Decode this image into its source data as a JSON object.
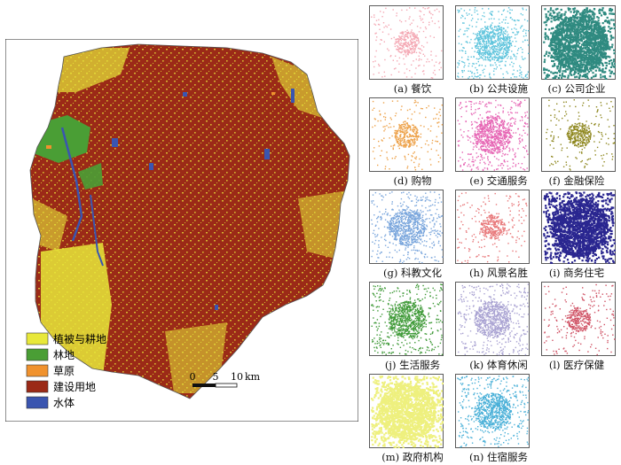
{
  "main_map": {
    "legend": [
      {
        "label": "植被与耕地",
        "color": "#e8e83a"
      },
      {
        "label": "林地",
        "color": "#4a9e35"
      },
      {
        "label": "草原",
        "color": "#f0922e"
      },
      {
        "label": "建设用地",
        "color": "#9b2a17"
      },
      {
        "label": "水体",
        "color": "#3a55b0"
      }
    ],
    "scale_bar": {
      "ticks": [
        "0",
        "5",
        "10"
      ],
      "unit": "km"
    }
  },
  "panels": [
    {
      "caption": "(a) 餐饮",
      "color": "#f4a8b4",
      "density": "low"
    },
    {
      "caption": "(b) 公共设施",
      "color": "#5ec4dc",
      "density": "mid"
    },
    {
      "caption": "(c) 公司企业",
      "color": "#2f8a80",
      "density": "high"
    },
    {
      "caption": "(d) 购物",
      "color": "#eda24a",
      "density": "low"
    },
    {
      "caption": "(e) 交通服务",
      "color": "#e665b4",
      "density": "mid"
    },
    {
      "caption": "(f) 金融保险",
      "color": "#8f8820",
      "density": "low"
    },
    {
      "caption": "(g) 科教文化",
      "color": "#7aa6dc",
      "density": "mid"
    },
    {
      "caption": "(h) 风景名胜",
      "color": "#e8787a",
      "density": "low"
    },
    {
      "caption": "(i) 商务住宅",
      "color": "#2a2690",
      "density": "high"
    },
    {
      "caption": "(j) 生活服务",
      "color": "#3f9a38",
      "density": "mid"
    },
    {
      "caption": "(k) 体育休闲",
      "color": "#a9a2d2",
      "density": "mid"
    },
    {
      "caption": "(l) 医疗保健",
      "color": "#d05466",
      "density": "low"
    },
    {
      "caption": "(m) 政府机构",
      "color": "#eef07e",
      "density": "high"
    },
    {
      "caption": "(n) 住宿服务",
      "color": "#4ab0d8",
      "density": "mid"
    }
  ]
}
